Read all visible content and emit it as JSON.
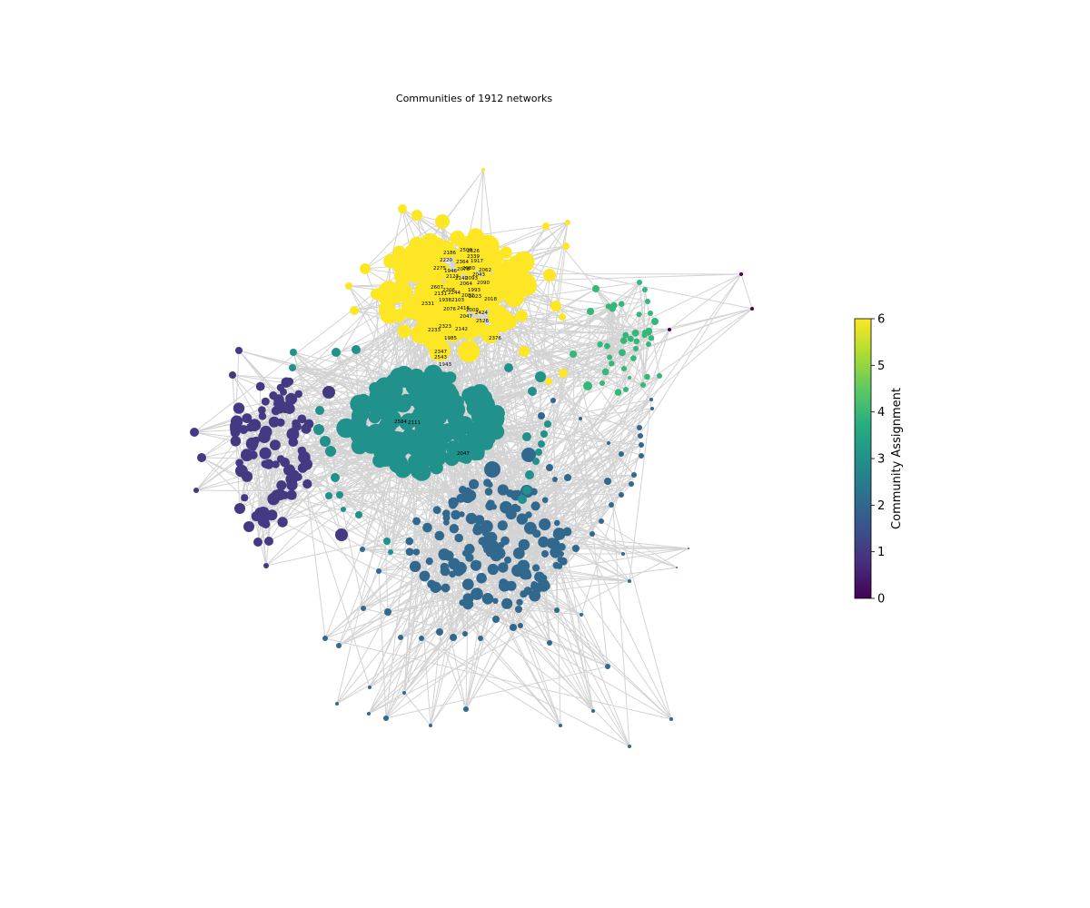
{
  "title": "Communities of 1912 networks",
  "colorbar": {
    "label": "Community Assignment",
    "ticks": [
      "0",
      "1",
      "2",
      "3",
      "4",
      "5",
      "6"
    ],
    "min": 0,
    "max": 6,
    "colormap": "viridis"
  },
  "communities": [
    {
      "id": 0,
      "color": "#440154"
    },
    {
      "id": 1,
      "color": "#443983"
    },
    {
      "id": 2,
      "color": "#31688e"
    },
    {
      "id": 3,
      "color": "#21918c"
    },
    {
      "id": 4,
      "color": "#35b779"
    },
    {
      "id": 6,
      "color": "#fde725"
    }
  ],
  "node_labels": {
    "community_6": [
      "2500",
      "2526",
      "2339",
      "1917",
      "2186",
      "2220",
      "2364",
      "2275",
      "2078",
      "2062",
      "1946",
      "2043",
      "2080",
      "2123",
      "2093",
      "2090",
      "2607",
      "2064",
      "1993",
      "2206",
      "2140",
      "2244",
      "2023",
      "2131",
      "2082",
      "2018",
      "1938",
      "2103",
      "2331",
      "2416",
      "2009",
      "2424",
      "2076",
      "2047",
      "2526",
      "2142",
      "2323",
      "2233",
      "1985",
      "2376",
      "2347",
      "2543",
      "1943"
    ],
    "community_3": [
      "2584",
      "2111",
      "2047"
    ]
  }
}
